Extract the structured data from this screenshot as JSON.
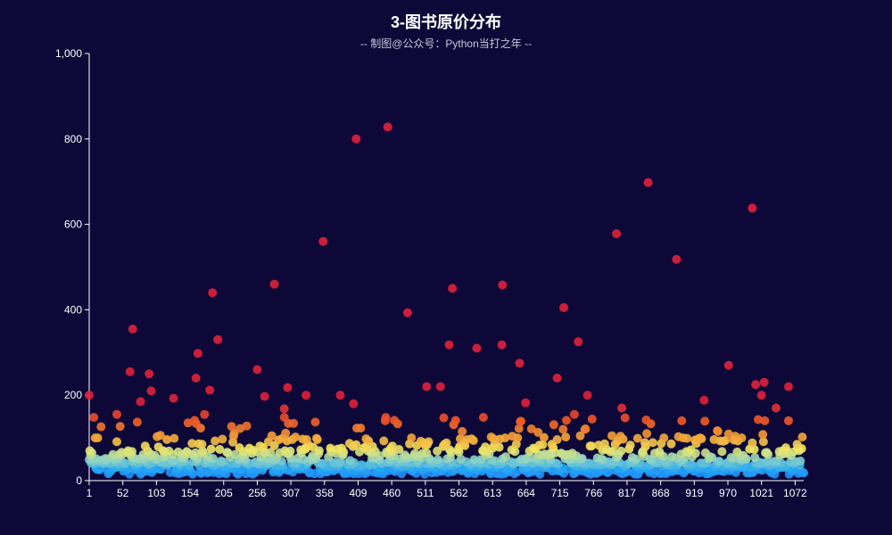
{
  "chart_data": {
    "type": "scatter",
    "title": "3-图书原价分布",
    "subtitle": "-- 制图@公众号：Python当打之年 --",
    "xlabel": "",
    "ylabel": "",
    "x_ticks": [
      "1",
      "52",
      "103",
      "154",
      "205",
      "256",
      "307",
      "358",
      "409",
      "460",
      "511",
      "562",
      "613",
      "664",
      "715",
      "766",
      "817",
      "868",
      "919",
      "970",
      "1021",
      "1072"
    ],
    "y_ticks": [
      "0",
      "200",
      "400",
      "600",
      "800",
      "1,000"
    ],
    "x_range": [
      1,
      1085
    ],
    "ylim": [
      0,
      1000
    ],
    "grid": false,
    "visual_map": {
      "stops": [
        {
          "value": 0,
          "color": "#1e7bff"
        },
        {
          "value": 30,
          "color": "#23a6f5"
        },
        {
          "value": 50,
          "color": "#8fd3c4"
        },
        {
          "value": 75,
          "color": "#f3e862"
        },
        {
          "value": 100,
          "color": "#f5a93a"
        },
        {
          "value": 140,
          "color": "#f05a28"
        },
        {
          "value": 180,
          "color": "#e0213b"
        }
      ]
    },
    "notable_points": [
      {
        "x": 1,
        "y": 200
      },
      {
        "x": 8,
        "y": 148
      },
      {
        "x": 43,
        "y": 155
      },
      {
        "x": 63,
        "y": 255
      },
      {
        "x": 67,
        "y": 355
      },
      {
        "x": 79,
        "y": 185
      },
      {
        "x": 92,
        "y": 250
      },
      {
        "x": 95,
        "y": 210
      },
      {
        "x": 129,
        "y": 193
      },
      {
        "x": 163,
        "y": 240
      },
      {
        "x": 166,
        "y": 298
      },
      {
        "x": 176,
        "y": 155
      },
      {
        "x": 184,
        "y": 212
      },
      {
        "x": 188,
        "y": 440
      },
      {
        "x": 196,
        "y": 330
      },
      {
        "x": 256,
        "y": 260
      },
      {
        "x": 267,
        "y": 197
      },
      {
        "x": 282,
        "y": 460
      },
      {
        "x": 297,
        "y": 168
      },
      {
        "x": 302,
        "y": 218
      },
      {
        "x": 330,
        "y": 200
      },
      {
        "x": 356,
        "y": 560
      },
      {
        "x": 382,
        "y": 200
      },
      {
        "x": 402,
        "y": 180
      },
      {
        "x": 406,
        "y": 800
      },
      {
        "x": 454,
        "y": 828
      },
      {
        "x": 484,
        "y": 393
      },
      {
        "x": 513,
        "y": 220
      },
      {
        "x": 534,
        "y": 220
      },
      {
        "x": 547,
        "y": 318
      },
      {
        "x": 552,
        "y": 450
      },
      {
        "x": 589,
        "y": 310
      },
      {
        "x": 599,
        "y": 148
      },
      {
        "x": 628,
        "y": 458
      },
      {
        "x": 627,
        "y": 318
      },
      {
        "x": 654,
        "y": 275
      },
      {
        "x": 663,
        "y": 182
      },
      {
        "x": 711,
        "y": 240
      },
      {
        "x": 721,
        "y": 405
      },
      {
        "x": 737,
        "y": 155
      },
      {
        "x": 743,
        "y": 325
      },
      {
        "x": 757,
        "y": 200
      },
      {
        "x": 801,
        "y": 578
      },
      {
        "x": 809,
        "y": 170
      },
      {
        "x": 849,
        "y": 698
      },
      {
        "x": 892,
        "y": 518
      },
      {
        "x": 934,
        "y": 188
      },
      {
        "x": 971,
        "y": 270
      },
      {
        "x": 1007,
        "y": 638
      },
      {
        "x": 1012,
        "y": 225
      },
      {
        "x": 1025,
        "y": 230
      },
      {
        "x": 1021,
        "y": 200
      },
      {
        "x": 1043,
        "y": 170
      },
      {
        "x": 1062,
        "y": 220
      }
    ]
  }
}
